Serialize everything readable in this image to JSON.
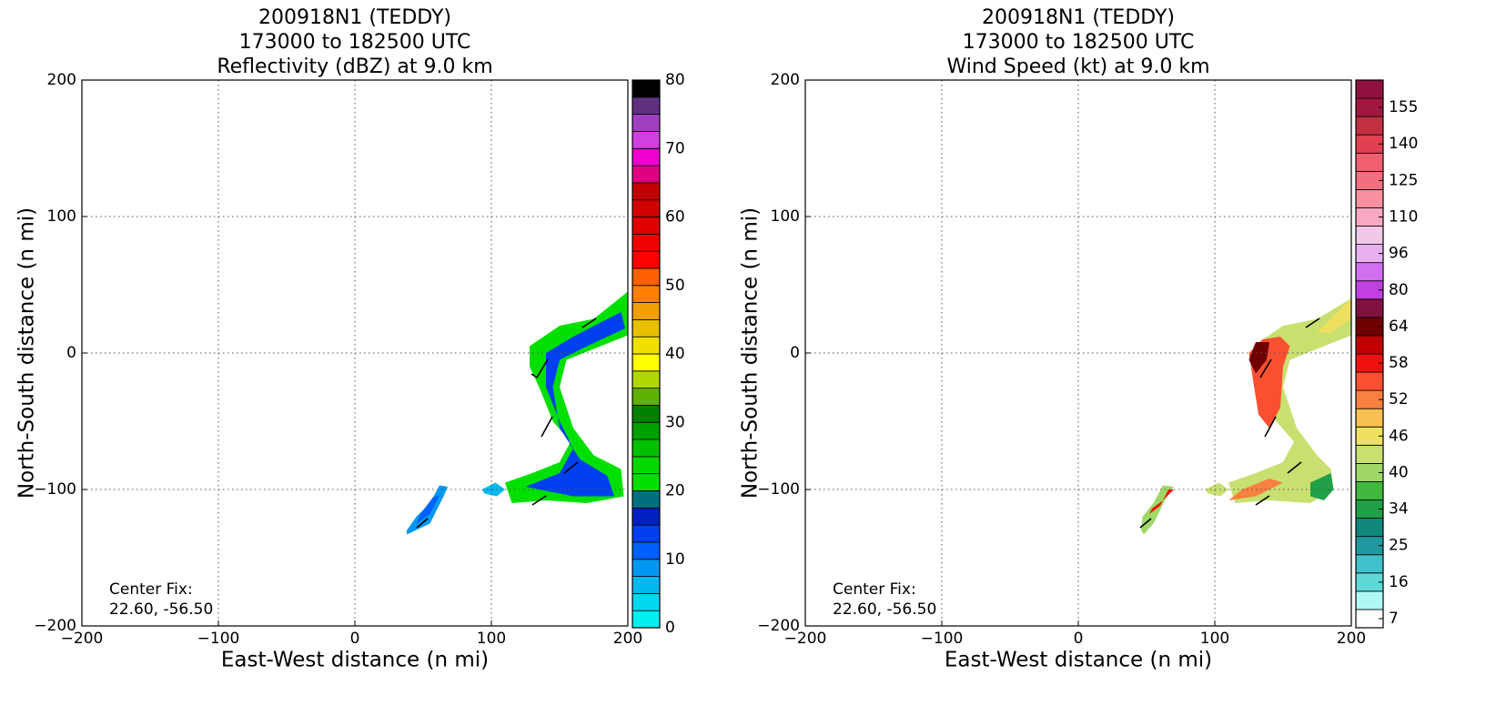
{
  "chart_data": [
    {
      "type": "contour",
      "title": [
        "200918N1 (TEDDY)",
        "173000 to 182500 UTC",
        "Reflectivity (dBZ) at 9.0 km"
      ],
      "xlabel": "East-West distance (n mi)",
      "ylabel": "North-South distance (n mi)",
      "xlim": [
        -200,
        200
      ],
      "ylim": [
        -200,
        200
      ],
      "xticks": [
        {
          "value": -200,
          "label": "−200"
        },
        {
          "value": -100,
          "label": "−100"
        },
        0,
        100,
        200
      ],
      "yticks": [
        {
          "value": -200,
          "label": "−200"
        },
        {
          "value": -100,
          "label": "−100"
        },
        0,
        100,
        200
      ],
      "grid": true,
      "annotation": [
        "Center Fix:",
        "22.60, -56.50"
      ],
      "colorbar": {
        "clim": [
          0,
          80
        ],
        "ticks": [
          0,
          10,
          20,
          30,
          40,
          50,
          60,
          70,
          80
        ],
        "colors": [
          "#00f0f0",
          "#00d8f0",
          "#00b8f0",
          "#0098f0",
          "#0060ff",
          "#0040f0",
          "#0020c0",
          "#007080",
          "#00e000",
          "#00d800",
          "#00c000",
          "#00a000",
          "#008000",
          "#60b000",
          "#b0d800",
          "#ffff00",
          "#f0e000",
          "#e8c000",
          "#f0a000",
          "#ff8000",
          "#ff6000",
          "#ff0000",
          "#f00000",
          "#e00000",
          "#d00000",
          "#c00000",
          "#e00080",
          "#f000d0",
          "#d040e0",
          "#a040c0",
          "#603080",
          "#000000"
        ]
      },
      "regions": [
        {
          "value": 21,
          "points": [
            [
              128,
              5
            ],
            [
              150,
              20
            ],
            [
              175,
              25
            ],
            [
              200,
              45
            ],
            [
              200,
              13
            ],
            [
              175,
              3
            ],
            [
              155,
              -5
            ],
            [
              150,
              -25
            ],
            [
              160,
              -55
            ],
            [
              175,
              -75
            ],
            [
              195,
              -85
            ],
            [
              197,
              -105
            ],
            [
              170,
              -110
            ],
            [
              140,
              -108
            ],
            [
              115,
              -110
            ],
            [
              110,
              -95
            ],
            [
              130,
              -88
            ],
            [
              150,
              -80
            ],
            [
              158,
              -65
            ],
            [
              145,
              -50
            ],
            [
              135,
              -25
            ],
            [
              128,
              -10
            ]
          ]
        },
        {
          "value": 13,
          "points": [
            [
              140,
              0
            ],
            [
              160,
              12
            ],
            [
              195,
              30
            ],
            [
              198,
              18
            ],
            [
              170,
              5
            ],
            [
              150,
              -5
            ],
            [
              145,
              -25
            ],
            [
              150,
              -55
            ],
            [
              165,
              -78
            ],
            [
              185,
              -90
            ],
            [
              190,
              -105
            ],
            [
              160,
              -105
            ],
            [
              135,
              -100
            ],
            [
              125,
              -98
            ],
            [
              150,
              -88
            ],
            [
              160,
              -70
            ],
            [
              150,
              -50
            ],
            [
              140,
              -25
            ]
          ]
        },
        {
          "value": 8,
          "points": [
            [
              38,
              -133
            ],
            [
              55,
              -125
            ],
            [
              65,
              -105
            ],
            [
              68,
              -98
            ],
            [
              62,
              -97
            ],
            [
              55,
              -110
            ],
            [
              45,
              -120
            ],
            [
              38,
              -130
            ]
          ]
        },
        {
          "value": 12,
          "points": [
            [
              45,
              -125
            ],
            [
              55,
              -118
            ],
            [
              62,
              -104
            ],
            [
              57,
              -106
            ],
            [
              48,
              -118
            ]
          ]
        },
        {
          "value": 5,
          "points": [
            [
              93,
              -100
            ],
            [
              103,
              -95
            ],
            [
              110,
              -100
            ],
            [
              104,
              -105
            ],
            [
              95,
              -103
            ]
          ]
        }
      ]
    },
    {
      "type": "contour",
      "title": [
        "200918N1 (TEDDY)",
        "173000 to 182500 UTC",
        "Wind Speed (kt) at 9.0 km"
      ],
      "xlabel": "East-West distance (n mi)",
      "ylabel": "North-South distance (n mi)",
      "xlim": [
        -200,
        200
      ],
      "ylim": [
        -200,
        200
      ],
      "xticks": [
        {
          "value": -200,
          "label": "−200"
        },
        {
          "value": -100,
          "label": "−100"
        },
        0,
        100,
        200
      ],
      "yticks": [
        {
          "value": -200,
          "label": "−200"
        },
        {
          "value": -100,
          "label": "−100"
        },
        0,
        100,
        200
      ],
      "grid": true,
      "annotation": [
        "Center Fix:",
        "22.60, -56.50"
      ],
      "colorbar": {
        "ticks": [
          7,
          16,
          25,
          34,
          40,
          46,
          52,
          58,
          64,
          80,
          96,
          110,
          125,
          140,
          155
        ],
        "levels": [
          7,
          11,
          16,
          20,
          25,
          29,
          34,
          37,
          40,
          43,
          46,
          49,
          52,
          55,
          58,
          61,
          64,
          72,
          80,
          88,
          96,
          103,
          110,
          117,
          125,
          132,
          140,
          147,
          155,
          162
        ],
        "colors": [
          "#ffffff",
          "#b0f8f8",
          "#60d8d8",
          "#40c0c8",
          "#209aa0",
          "#10887c",
          "#20a048",
          "#40b840",
          "#a0d868",
          "#c8e070",
          "#f0e060",
          "#f8c050",
          "#f88040",
          "#f85030",
          "#f01010",
          "#c00000",
          "#700000",
          "#801040",
          "#c040e0",
          "#d070f0",
          "#e8b0f0",
          "#f0c8e8",
          "#f8a8c0",
          "#f890a0",
          "#f07080",
          "#f06070",
          "#e04050",
          "#c03040",
          "#a01840",
          "#901040"
        ]
      },
      "regions": [
        {
          "value": 43,
          "points": [
            [
              128,
              5
            ],
            [
              150,
              20
            ],
            [
              175,
              25
            ],
            [
              200,
              40
            ],
            [
              200,
              13
            ],
            [
              175,
              3
            ],
            [
              155,
              -5
            ],
            [
              150,
              -25
            ],
            [
              160,
              -55
            ],
            [
              175,
              -75
            ],
            [
              185,
              -85
            ],
            [
              187,
              -100
            ],
            [
              170,
              -110
            ],
            [
              140,
              -108
            ],
            [
              115,
              -110
            ],
            [
              110,
              -95
            ],
            [
              130,
              -88
            ],
            [
              150,
              -80
            ],
            [
              158,
              -65
            ],
            [
              145,
              -50
            ],
            [
              135,
              -25
            ],
            [
              128,
              -10
            ]
          ]
        },
        {
          "value": 40,
          "points": [
            [
              48,
              -133
            ],
            [
              55,
              -125
            ],
            [
              65,
              -105
            ],
            [
              70,
              -98
            ],
            [
              62,
              -97
            ],
            [
              55,
              -110
            ],
            [
              47,
              -120
            ],
            [
              46,
              -130
            ]
          ]
        },
        {
          "value": 43,
          "points": [
            [
              93,
              -100
            ],
            [
              103,
              -95
            ],
            [
              110,
              -100
            ],
            [
              104,
              -105
            ],
            [
              95,
              -103
            ]
          ]
        },
        {
          "value": 55,
          "points": [
            [
              125,
              0
            ],
            [
              135,
              10
            ],
            [
              148,
              12
            ],
            [
              155,
              5
            ],
            [
              150,
              -10
            ],
            [
              148,
              -40
            ],
            [
              140,
              -55
            ],
            [
              132,
              -45
            ],
            [
              128,
              -20
            ]
          ]
        },
        {
          "value": 64,
          "points": [
            [
              125,
              -5
            ],
            [
              130,
              8
            ],
            [
              140,
              8
            ],
            [
              138,
              -5
            ],
            [
              130,
              -15
            ]
          ]
        },
        {
          "value": 52,
          "points": [
            [
              110,
              -108
            ],
            [
              120,
              -100
            ],
            [
              140,
              -92
            ],
            [
              150,
              -95
            ],
            [
              130,
              -105
            ]
          ]
        },
        {
          "value": 58,
          "points": [
            [
              52,
              -118
            ],
            [
              60,
              -112
            ],
            [
              66,
              -100
            ],
            [
              70,
              -100
            ],
            [
              62,
              -108
            ],
            [
              54,
              -114
            ]
          ]
        },
        {
          "value": 34,
          "points": [
            [
              170,
              -95
            ],
            [
              185,
              -88
            ],
            [
              187,
              -100
            ],
            [
              180,
              -108
            ],
            [
              170,
              -105
            ]
          ]
        },
        {
          "value": 46,
          "points": [
            [
              175,
              15
            ],
            [
              200,
              40
            ],
            [
              200,
              25
            ],
            [
              185,
              15
            ]
          ]
        }
      ]
    }
  ]
}
